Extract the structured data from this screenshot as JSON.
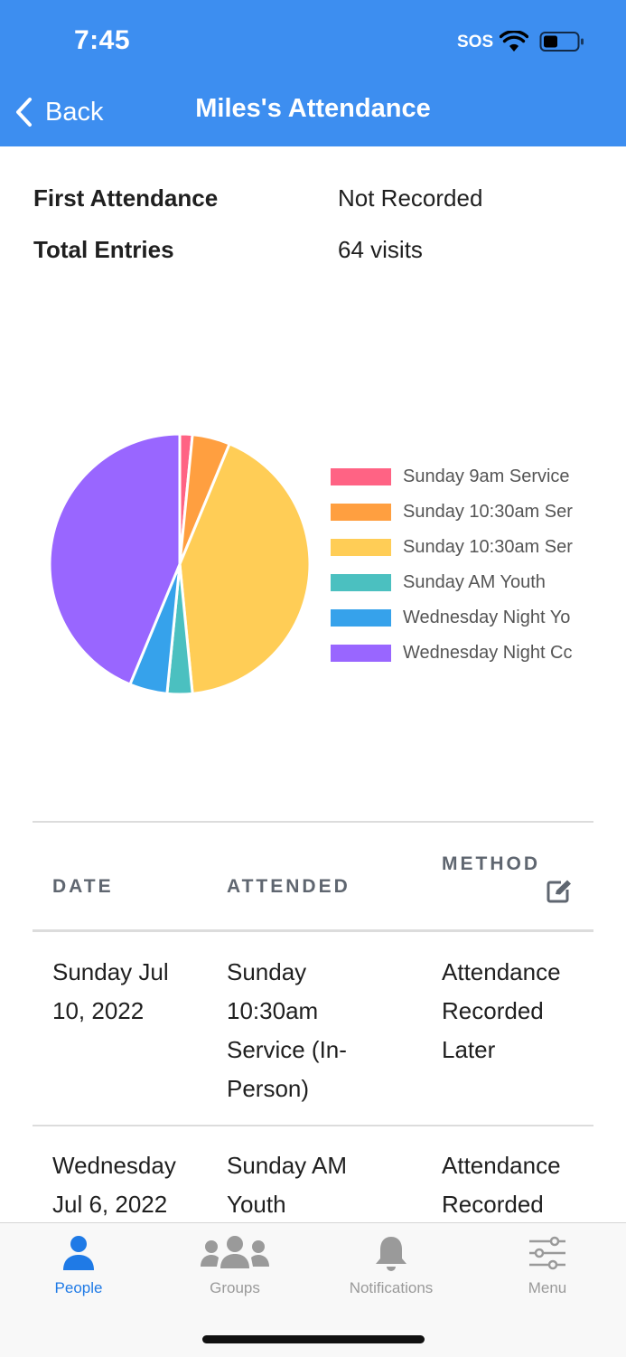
{
  "status_bar": {
    "time": "7:45",
    "sos": "SOS"
  },
  "nav": {
    "back_label": "Back",
    "title": "Miles's Attendance"
  },
  "summary": [
    {
      "label": "First Attendance",
      "value": "Not Recorded"
    },
    {
      "label": "Total Entries",
      "value": "64 visits"
    }
  ],
  "chart_data": {
    "type": "pie",
    "slices": [
      {
        "label": "Sunday 9am Service",
        "value": 1,
        "color": "#ff6384"
      },
      {
        "label": "Sunday 10:30am Ser",
        "value": 3,
        "color": "#ff9f40"
      },
      {
        "label": "Sunday 10:30am Ser",
        "value": 27,
        "color": "#ffcd56"
      },
      {
        "label": "Sunday AM Youth",
        "value": 2,
        "color": "#4bc0c0"
      },
      {
        "label": "Wednesday Night Yo",
        "value": 3,
        "color": "#36a2eb"
      },
      {
        "label": "Wednesday Night Cc",
        "value": 28,
        "color": "#9966ff"
      }
    ]
  },
  "table": {
    "headers": {
      "date": "DATE",
      "attended": "ATTENDED",
      "method": "METHOD",
      "method_icon": "edit-icon"
    },
    "rows": [
      {
        "date": "Sunday Jul 10, 2022",
        "attended": "Sunday 10:30am Service (In-Person)",
        "method": "Attendance Recorded Later"
      },
      {
        "date": "Wednesday Jul 6, 2022",
        "attended": "Sunday AM Youth",
        "method": "Attendance Recorded"
      }
    ]
  },
  "tabbar": {
    "tabs": [
      {
        "label": "People",
        "icon": "person-icon",
        "active": true
      },
      {
        "label": "Groups",
        "icon": "group-icon",
        "active": false
      },
      {
        "label": "Notifications",
        "icon": "bell-icon",
        "active": false
      },
      {
        "label": "Menu",
        "icon": "sliders-icon",
        "active": false
      }
    ]
  },
  "colors": {
    "header": "#3d8ef0",
    "active_tab": "#1f7ae6",
    "inactive_tab": "#9a9a9a"
  }
}
